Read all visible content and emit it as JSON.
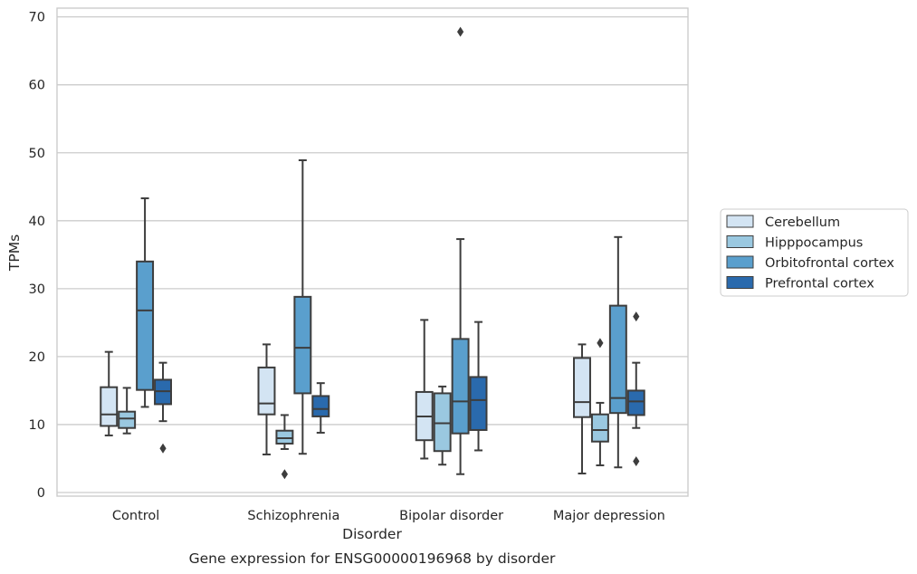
{
  "chart_data": {
    "type": "box",
    "caption": "Gene expression for ENSG00000196968 by disorder",
    "xlabel": "Disorder",
    "ylabel": "TPMs",
    "ylim": [
      -0.5,
      71.2
    ],
    "yticks": [
      0,
      10,
      20,
      30,
      40,
      50,
      60,
      70
    ],
    "grid": "horizontal",
    "legend_position": "right",
    "categories": [
      "Control",
      "Schizophrenia",
      "Bipolar disorder",
      "Major depression"
    ],
    "series": [
      {
        "name": "Cerebellum",
        "color": "#d3e4f3",
        "boxes": [
          {
            "whislo": 8.4,
            "q1": 9.8,
            "med": 11.5,
            "q3": 15.5,
            "whishi": 20.7,
            "fliers": []
          },
          {
            "whislo": 5.6,
            "q1": 11.5,
            "med": 13.1,
            "q3": 18.4,
            "whishi": 21.8,
            "fliers": []
          },
          {
            "whislo": 5.0,
            "q1": 7.7,
            "med": 11.2,
            "q3": 14.8,
            "whishi": 25.4,
            "fliers": []
          },
          {
            "whislo": 2.8,
            "q1": 11.1,
            "med": 13.3,
            "q3": 19.8,
            "whishi": 21.8,
            "fliers": []
          }
        ]
      },
      {
        "name": "Hipppocampus",
        "color": "#9ac8e0",
        "boxes": [
          {
            "whislo": 8.7,
            "q1": 9.5,
            "med": 10.9,
            "q3": 11.9,
            "whishi": 15.4,
            "fliers": []
          },
          {
            "whislo": 6.4,
            "q1": 7.2,
            "med": 8.0,
            "q3": 9.1,
            "whishi": 11.4,
            "fliers": [
              2.7
            ]
          },
          {
            "whislo": 4.1,
            "q1": 6.1,
            "med": 10.2,
            "q3": 14.6,
            "whishi": 15.6,
            "fliers": []
          },
          {
            "whislo": 4.0,
            "q1": 7.5,
            "med": 9.2,
            "q3": 11.5,
            "whishi": 13.2,
            "fliers": [
              22.0
            ]
          }
        ]
      },
      {
        "name": "Orbitofrontal cortex",
        "color": "#5a9fcd",
        "boxes": [
          {
            "whislo": 12.6,
            "q1": 15.1,
            "med": 26.8,
            "q3": 34.0,
            "whishi": 43.3,
            "fliers": []
          },
          {
            "whislo": 5.7,
            "q1": 14.6,
            "med": 21.3,
            "q3": 28.8,
            "whishi": 48.9,
            "fliers": []
          },
          {
            "whislo": 2.7,
            "q1": 8.7,
            "med": 13.4,
            "q3": 22.6,
            "whishi": 37.3,
            "fliers": [
              67.8
            ]
          },
          {
            "whislo": 3.7,
            "q1": 11.7,
            "med": 13.9,
            "q3": 27.5,
            "whishi": 37.6,
            "fliers": []
          }
        ]
      },
      {
        "name": "Prefrontal cortex",
        "color": "#2a6aad",
        "boxes": [
          {
            "whislo": 10.5,
            "q1": 13.0,
            "med": 14.9,
            "q3": 16.6,
            "whishi": 19.1,
            "fliers": [
              6.5
            ]
          },
          {
            "whislo": 8.8,
            "q1": 11.2,
            "med": 12.3,
            "q3": 14.2,
            "whishi": 16.1,
            "fliers": []
          },
          {
            "whislo": 6.2,
            "q1": 9.2,
            "med": 13.6,
            "q3": 17.0,
            "whishi": 25.1,
            "fliers": []
          },
          {
            "whislo": 9.5,
            "q1": 11.4,
            "med": 13.4,
            "q3": 15.0,
            "whishi": 19.1,
            "fliers": [
              25.9,
              4.6
            ]
          }
        ]
      }
    ]
  }
}
